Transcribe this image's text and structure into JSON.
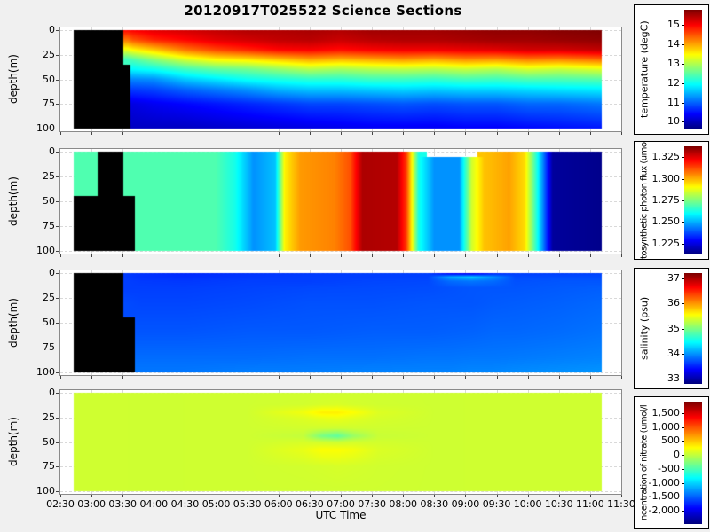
{
  "title": "20120917T025522 Science Sections",
  "figure": {
    "background_color": "#f0f0f0",
    "plot_background": "#ffffff",
    "colormap": "jet",
    "no_data_color": "#000000"
  },
  "x_axis": {
    "label": "UTC Time",
    "tick_labels": [
      "02:30",
      "03:00",
      "03:30",
      "04:00",
      "04:30",
      "05:00",
      "05:30",
      "06:00",
      "06:30",
      "07:00",
      "07:30",
      "08:00",
      "08:30",
      "09:00",
      "09:30",
      "10:00",
      "10:30",
      "11:00",
      "11:30"
    ],
    "tick_hours": [
      2.5,
      3.0,
      3.5,
      4.0,
      4.5,
      5.0,
      5.5,
      6.0,
      6.5,
      7.0,
      7.5,
      8.0,
      8.5,
      9.0,
      9.5,
      10.0,
      10.5,
      11.0,
      11.5
    ],
    "start_hour": 2.5,
    "end_hour": 11.5
  },
  "y_axis": {
    "label": "depth(m)",
    "tick_values": [
      0,
      25,
      50,
      75,
      100
    ],
    "max_depth": 100
  },
  "chart_data": [
    {
      "type": "heatmap",
      "id": "temperature",
      "colorbar_label": "temperature (degC)",
      "colorbar_tick_values": [
        15,
        14,
        13,
        12,
        11,
        10
      ],
      "colorbar_tick_labels": [
        "15",
        "14",
        "13",
        "12",
        "11",
        "10"
      ],
      "vmin": 9.6,
      "vmax": 15.8,
      "depths": [
        0,
        10,
        20,
        30,
        40,
        50,
        60,
        75,
        100
      ],
      "x_hours": [
        2.72,
        3.0,
        3.21,
        3.45,
        3.58,
        3.66,
        4.0,
        4.5,
        5.0,
        5.5,
        6.0,
        6.5,
        7.0,
        7.5,
        8.0,
        8.5,
        9.0,
        9.5,
        10.0,
        10.5,
        11.19
      ],
      "columns": [
        [
          null,
          null,
          null,
          null,
          null,
          null,
          null,
          null,
          null
        ],
        [
          null,
          null,
          null,
          null,
          null,
          null,
          null,
          null,
          null
        ],
        [
          null,
          null,
          null,
          null,
          null,
          null,
          null,
          null,
          null
        ],
        [
          null,
          null,
          null,
          null,
          null,
          null,
          null,
          null,
          null
        ],
        [
          15.0,
          14.3,
          13.35,
          12.3,
          null,
          null,
          null,
          null,
          null
        ],
        [
          15.05,
          14.5,
          13.5,
          12.4,
          11.9,
          11.2,
          10.75,
          10.2,
          10.0
        ],
        [
          15.2,
          14.8,
          13.8,
          12.75,
          12.0,
          11.25,
          10.8,
          10.3,
          10.0
        ],
        [
          15.3,
          15.0,
          14.3,
          13.2,
          12.3,
          11.6,
          11.0,
          10.4,
          10.0
        ],
        [
          15.4,
          15.2,
          14.6,
          13.5,
          12.5,
          11.8,
          11.15,
          10.5,
          10.05
        ],
        [
          15.5,
          15.3,
          14.8,
          13.6,
          12.6,
          12.0,
          11.3,
          10.6,
          10.1
        ],
        [
          15.5,
          15.4,
          15.0,
          13.8,
          12.8,
          12.1,
          11.5,
          10.7,
          10.15
        ],
        [
          15.55,
          15.45,
          15.05,
          14.0,
          13.0,
          12.2,
          11.6,
          10.8,
          10.2
        ],
        [
          15.5,
          15.35,
          14.95,
          13.9,
          12.9,
          12.2,
          11.6,
          10.8,
          10.25
        ],
        [
          15.6,
          15.45,
          15.05,
          14.0,
          13.0,
          12.3,
          11.65,
          10.85,
          10.3
        ],
        [
          15.6,
          15.5,
          15.1,
          14.1,
          13.05,
          12.3,
          11.7,
          10.9,
          10.3
        ],
        [
          15.6,
          15.5,
          15.1,
          14.0,
          13.0,
          12.25,
          11.65,
          10.85,
          10.3
        ],
        [
          15.65,
          15.55,
          15.15,
          14.15,
          13.1,
          12.35,
          11.7,
          10.9,
          10.35
        ],
        [
          15.7,
          15.6,
          15.2,
          14.1,
          13.0,
          12.3,
          11.7,
          10.9,
          10.35
        ],
        [
          15.7,
          15.6,
          15.3,
          14.25,
          13.2,
          12.4,
          11.75,
          11.0,
          10.4
        ],
        [
          15.75,
          15.65,
          15.3,
          14.2,
          13.1,
          12.4,
          11.8,
          11.0,
          10.45
        ],
        [
          15.8,
          15.7,
          15.4,
          14.35,
          13.25,
          12.45,
          11.85,
          11.1,
          10.5
        ]
      ]
    },
    {
      "type": "heatmap",
      "id": "photon_flux",
      "colorbar_label": "tosynthetic photon flux (umo",
      "colorbar_tick_values": [
        1.325,
        1.3,
        1.275,
        1.25,
        1.225
      ],
      "colorbar_tick_labels": [
        "1.325",
        "1.300",
        "1.275",
        "1.250",
        "1.225"
      ],
      "vmin": 1.2125,
      "vmax": 1.3375,
      "depths": [
        0,
        10,
        20,
        30,
        40,
        50,
        60,
        75,
        100
      ],
      "x_hours": [
        2.72,
        3.0,
        3.21,
        3.45,
        3.58,
        3.8,
        4.5,
        5.0,
        5.3,
        5.6,
        5.95,
        6.1,
        6.35,
        6.9,
        7.15,
        7.35,
        7.9,
        8.05,
        8.25,
        8.5,
        8.9,
        9.1,
        9.3,
        9.7,
        9.95,
        10.15,
        10.4,
        11.19
      ],
      "columns": [
        [
          1.269,
          1.269,
          1.269,
          1.269,
          1.269,
          null,
          null,
          null,
          null
        ],
        [
          1.269,
          1.269,
          1.269,
          1.269,
          1.269,
          null,
          null,
          null,
          null
        ],
        [
          null,
          null,
          null,
          null,
          null,
          null,
          null,
          null,
          null
        ],
        [
          null,
          null,
          null,
          null,
          null,
          null,
          null,
          null,
          null
        ],
        [
          1.269,
          1.269,
          1.269,
          1.269,
          1.269,
          null,
          null,
          null,
          null
        ],
        [
          1.269,
          1.269,
          1.269,
          1.269,
          1.269,
          1.269,
          1.269,
          1.269,
          1.269
        ],
        [
          1.269,
          1.269,
          1.269,
          1.269,
          1.269,
          1.269,
          1.269,
          1.269,
          1.269
        ],
        [
          1.269,
          1.269,
          1.269,
          1.269,
          1.269,
          1.269,
          1.269,
          1.269,
          1.269
        ],
        [
          1.262,
          1.262,
          1.262,
          1.262,
          1.262,
          1.262,
          1.262,
          1.262,
          1.262
        ],
        [
          1.246,
          1.246,
          1.246,
          1.246,
          1.246,
          1.246,
          1.246,
          1.246,
          1.246
        ],
        [
          1.252,
          1.252,
          1.252,
          1.252,
          1.252,
          1.252,
          1.252,
          1.252,
          1.252
        ],
        [
          1.292,
          1.292,
          1.292,
          1.292,
          1.292,
          1.292,
          1.292,
          1.292,
          1.292
        ],
        [
          1.303,
          1.303,
          1.303,
          1.303,
          1.303,
          1.303,
          1.303,
          1.303,
          1.303
        ],
        [
          1.306,
          1.306,
          1.306,
          1.306,
          1.306,
          1.306,
          1.306,
          1.306,
          1.306
        ],
        [
          1.312,
          1.312,
          1.312,
          1.312,
          1.312,
          1.312,
          1.312,
          1.312,
          1.312
        ],
        [
          1.332,
          1.332,
          1.332,
          1.332,
          1.332,
          1.332,
          1.332,
          1.332,
          1.332
        ],
        [
          1.331,
          1.331,
          1.331,
          1.331,
          1.331,
          1.331,
          1.331,
          1.331,
          1.331
        ],
        [
          1.315,
          1.315,
          1.315,
          1.315,
          1.315,
          1.315,
          1.315,
          1.315,
          1.315
        ],
        [
          1.262,
          1.262,
          1.262,
          1.262,
          1.262,
          1.262,
          1.262,
          1.262,
          1.262
        ],
        [
          "x",
          1.246,
          1.246,
          1.246,
          1.246,
          1.246,
          1.246,
          1.246,
          1.246
        ],
        [
          "x",
          1.246,
          1.246,
          1.246,
          1.246,
          1.246,
          1.246,
          1.246,
          1.246
        ],
        [
          "x",
          1.285,
          1.285,
          1.285,
          1.285,
          1.285,
          1.285,
          1.285,
          1.285
        ],
        [
          1.298,
          1.298,
          1.298,
          1.298,
          1.298,
          1.298,
          1.298,
          1.298,
          1.298
        ],
        [
          1.302,
          1.302,
          1.302,
          1.302,
          1.302,
          1.302,
          1.302,
          1.302,
          1.302
        ],
        [
          1.295,
          1.295,
          1.295,
          1.295,
          1.295,
          1.295,
          1.295,
          1.295,
          1.295
        ],
        [
          1.262,
          1.262,
          1.262,
          1.262,
          1.262,
          1.262,
          1.262,
          1.262,
          1.262
        ],
        [
          1.216,
          1.216,
          1.216,
          1.216,
          1.216,
          1.216,
          1.216,
          1.216,
          1.216
        ],
        [
          1.214,
          1.214,
          1.214,
          1.214,
          1.214,
          1.214,
          1.214,
          1.214,
          1.214
        ]
      ]
    },
    {
      "type": "heatmap",
      "id": "salinity",
      "colorbar_label": "salinity (psu)",
      "colorbar_tick_values": [
        37,
        36,
        35,
        34,
        33
      ],
      "colorbar_tick_labels": [
        "37",
        "36",
        "35",
        "34",
        "33"
      ],
      "vmin": 32.77,
      "vmax": 37.23,
      "depths": [
        0,
        4,
        8,
        15,
        30,
        60,
        85,
        100
      ],
      "x_hours": [
        2.72,
        3.0,
        3.21,
        3.45,
        3.58,
        3.8,
        4.5,
        5.5,
        6.5,
        7.5,
        8.4,
        8.75,
        9.1,
        9.45,
        9.8,
        10.5,
        11.19
      ],
      "columns": [
        [
          null,
          null,
          null,
          null,
          null,
          null,
          null,
          null
        ],
        [
          null,
          null,
          null,
          null,
          null,
          null,
          null,
          null
        ],
        [
          null,
          null,
          null,
          null,
          null,
          null,
          null,
          null
        ],
        [
          null,
          null,
          null,
          null,
          null,
          null,
          null,
          null
        ],
        [
          33.58,
          33.58,
          33.6,
          33.6,
          33.65,
          null,
          null,
          null
        ],
        [
          33.55,
          33.55,
          33.58,
          33.6,
          33.63,
          33.7,
          33.8,
          33.85
        ],
        [
          33.5,
          33.53,
          33.57,
          33.6,
          33.63,
          33.7,
          33.8,
          33.85
        ],
        [
          33.55,
          33.57,
          33.6,
          33.62,
          33.65,
          33.72,
          33.8,
          33.88
        ],
        [
          33.58,
          33.6,
          33.6,
          33.64,
          33.68,
          33.72,
          33.82,
          33.88
        ],
        [
          33.6,
          33.6,
          33.63,
          33.65,
          33.68,
          33.74,
          33.82,
          33.9
        ],
        [
          33.6,
          33.62,
          33.64,
          33.66,
          33.7,
          33.74,
          33.84,
          33.9
        ],
        [
          33.25,
          34.05,
          33.8,
          33.68,
          33.7,
          33.75,
          33.84,
          33.9
        ],
        [
          33.15,
          34.2,
          33.85,
          33.7,
          33.7,
          33.76,
          33.85,
          33.92
        ],
        [
          33.45,
          33.95,
          33.8,
          33.7,
          33.72,
          33.78,
          33.85,
          33.92
        ],
        [
          33.6,
          33.65,
          33.68,
          33.7,
          33.73,
          33.78,
          33.86,
          33.94
        ],
        [
          33.6,
          33.66,
          33.7,
          33.72,
          33.75,
          33.8,
          33.88,
          33.96
        ],
        [
          33.62,
          33.66,
          33.7,
          33.74,
          33.78,
          33.83,
          33.9,
          33.98
        ]
      ]
    },
    {
      "type": "heatmap",
      "id": "nitrate",
      "colorbar_label": "ncentration of nitrate (umol/l",
      "colorbar_tick_values": [
        1500,
        1000,
        500,
        0,
        -500,
        -1000,
        -1500,
        -2000
      ],
      "colorbar_tick_labels": [
        "1,500",
        "1,000",
        "500",
        "0",
        "-500",
        "-1,000",
        "-1,500",
        "-2,000"
      ],
      "vmin": -2479,
      "vmax": 1912,
      "depths": [
        0,
        12,
        20,
        26,
        36,
        44,
        50,
        58,
        75,
        100
      ],
      "x_hours": [
        2.72,
        4.0,
        5.5,
        6.4,
        6.7,
        6.95,
        7.2,
        7.6,
        8.5,
        10.0,
        11.19
      ],
      "columns": [
        [
          60,
          60,
          60,
          60,
          60,
          60,
          60,
          60,
          60,
          60
        ],
        [
          55,
          55,
          55,
          55,
          55,
          55,
          55,
          55,
          55,
          55
        ],
        [
          60,
          60,
          60,
          60,
          60,
          60,
          60,
          60,
          60,
          60
        ],
        [
          60,
          70,
          210,
          120,
          70,
          10,
          90,
          170,
          70,
          60
        ],
        [
          60,
          90,
          330,
          160,
          60,
          -320,
          60,
          260,
          80,
          60
        ],
        [
          60,
          100,
          330,
          180,
          50,
          -430,
          40,
          260,
          90,
          60
        ],
        [
          60,
          80,
          260,
          140,
          60,
          -180,
          70,
          220,
          80,
          60
        ],
        [
          60,
          65,
          120,
          90,
          60,
          30,
          70,
          110,
          65,
          60
        ],
        [
          55,
          55,
          55,
          55,
          55,
          55,
          55,
          55,
          55,
          55
        ],
        [
          60,
          60,
          60,
          60,
          60,
          60,
          60,
          60,
          60,
          60
        ],
        [
          60,
          60,
          60,
          60,
          60,
          60,
          60,
          60,
          60,
          60
        ]
      ]
    }
  ]
}
